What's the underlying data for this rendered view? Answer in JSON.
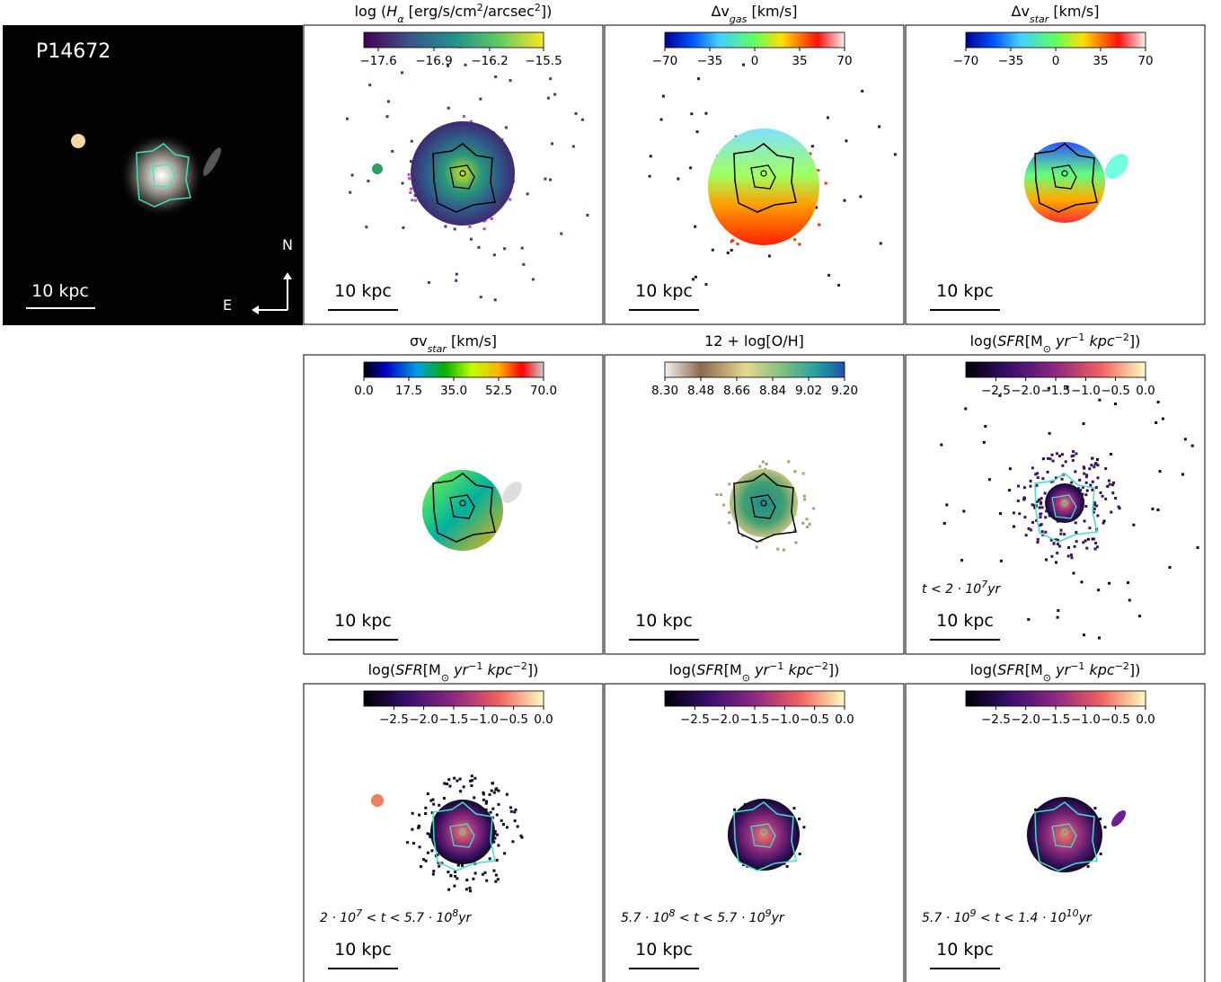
{
  "galaxy_id": "P14672",
  "image_panel": {
    "scale": "10 kpc",
    "north": "N",
    "east": "E"
  },
  "panels": [
    {
      "title": [
        "log (",
        "H",
        "α",
        " [erg/s/cm",
        "2",
        "/arcsec",
        "2",
        "])"
      ],
      "colorbar_ticks": [
        "−17.6",
        "−16.9",
        "−16.2",
        "−15.5"
      ],
      "scale": "10 kpc"
    },
    {
      "title": [
        "Δv",
        "gas",
        " [km/s]"
      ],
      "colorbar_ticks": [
        "−70",
        "−35",
        "0",
        "35",
        "70"
      ],
      "scale": "10 kpc"
    },
    {
      "title": [
        "Δv",
        "star",
        " [km/s]"
      ],
      "colorbar_ticks": [
        "−70",
        "−35",
        "0",
        "35",
        "70"
      ],
      "scale": "10 kpc"
    },
    {
      "title": [
        "σv",
        "star",
        " [km/s]"
      ],
      "colorbar_ticks": [
        "0.0",
        "17.5",
        "35.0",
        "52.5",
        "70.0"
      ],
      "scale": "10 kpc"
    },
    {
      "title": [
        "12 + log[O/H]"
      ],
      "colorbar_ticks": [
        "8.30",
        "8.48",
        "8.66",
        "8.84",
        "9.02",
        "9.20"
      ],
      "scale": "10 kpc"
    },
    {
      "title": [
        "log(",
        "SFR",
        "[M",
        "⊙",
        " yr",
        "−1",
        " kpc",
        "−2",
        "])"
      ],
      "colorbar_ticks": [
        "−2.5",
        "−2.0",
        "−1.5",
        "−1.0",
        "−0.5",
        "0.0"
      ],
      "scale": "10 kpc",
      "age": [
        "t",
        " < 2 · 10",
        "7",
        "yr"
      ]
    },
    {
      "title": [
        "log(",
        "SFR",
        "[M",
        "⊙",
        " yr",
        "−1",
        " kpc",
        "−2",
        "])"
      ],
      "colorbar_ticks": [
        "−2.5",
        "−2.0",
        "−1.5",
        "−1.0",
        "−0.5",
        "0.0"
      ],
      "scale": "10 kpc",
      "age": [
        "2 · 10",
        "7",
        " < t < 5.7 · 10",
        "8",
        "yr"
      ]
    },
    {
      "title": [
        "log(",
        "SFR",
        "[M",
        "⊙",
        " yr",
        "−1",
        " kpc",
        "−2",
        "])"
      ],
      "colorbar_ticks": [
        "−2.5",
        "−2.0",
        "−1.5",
        "−1.0",
        "−0.5",
        "0.0"
      ],
      "scale": "10 kpc",
      "age": [
        "5.7 · 10",
        "8",
        " < t < 5.7 · 10",
        "9",
        "yr"
      ]
    },
    {
      "title": [
        "log(",
        "SFR",
        "[M",
        "⊙",
        " yr",
        "−1",
        " kpc",
        "−2",
        "])"
      ],
      "colorbar_ticks": [
        "−2.5",
        "−2.0",
        "−1.5",
        "−1.0",
        "−0.5",
        "0.0"
      ],
      "scale": "10 kpc",
      "age": [
        "5.7 · 10",
        "9",
        " < t < 1.4 · 10",
        "10",
        "yr"
      ]
    }
  ]
}
